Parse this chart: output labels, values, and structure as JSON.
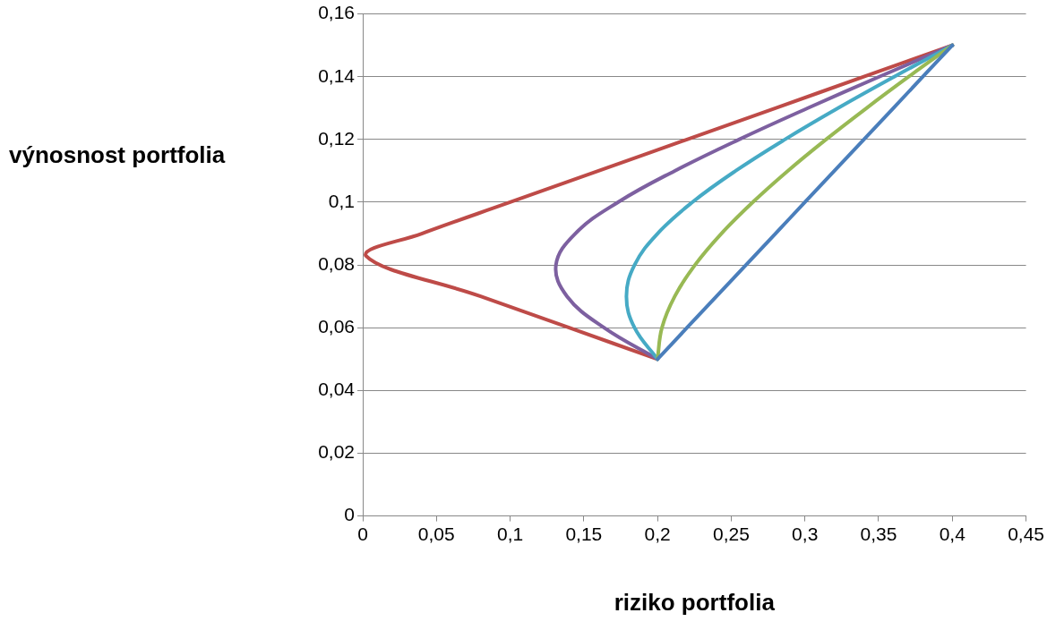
{
  "chart_data": {
    "type": "line",
    "xlabel": "riziko portfolia",
    "ylabel": "výnosnost portfolia",
    "xlim": [
      0,
      0.45
    ],
    "ylim": [
      0,
      0.16
    ],
    "xticks": [
      0,
      {
        "value": 0.05,
        "label": "0,05"
      },
      {
        "value": 0.1,
        "label": "0,1"
      },
      {
        "value": 0.15,
        "label": "0,15"
      },
      {
        "value": 0.2,
        "label": "0,2"
      },
      {
        "value": 0.25,
        "label": "0,25"
      },
      {
        "value": 0.3,
        "label": "0,3"
      },
      {
        "value": 0.35,
        "label": "0,35"
      },
      {
        "value": 0.4,
        "label": "0,4"
      },
      {
        "value": 0.45,
        "label": "0,45"
      }
    ],
    "yticks": [
      0,
      {
        "value": 0.02,
        "label": "0,02"
      },
      {
        "value": 0.04,
        "label": "0,04"
      },
      {
        "value": 0.06,
        "label": "0,06"
      },
      {
        "value": 0.08,
        "label": "0,08"
      },
      {
        "value": 0.1,
        "label": "0,1"
      },
      {
        "value": 0.12,
        "label": "0,12"
      },
      {
        "value": 0.14,
        "label": "0,14"
      },
      {
        "value": 0.16,
        "label": "0,16"
      }
    ],
    "grid": "y",
    "legend": false,
    "marker": "none",
    "line_style": "solid",
    "series": [
      {
        "color": "#4a7ebb",
        "x": [
          0.2,
          0.22,
          0.24,
          0.26,
          0.28,
          0.3,
          0.32,
          0.34,
          0.36,
          0.38,
          0.4
        ],
        "values": [
          0.05,
          0.06,
          0.07,
          0.08,
          0.09,
          0.1,
          0.11,
          0.12,
          0.13,
          0.14,
          0.15
        ]
      },
      {
        "color": "#98b954",
        "x": [
          0.2,
          0.203,
          0.2117,
          0.2254,
          0.2433,
          0.2646,
          0.2884,
          0.3143,
          0.3418,
          0.3704,
          0.4
        ],
        "values": [
          0.05,
          0.06,
          0.07,
          0.08,
          0.09,
          0.1,
          0.11,
          0.12,
          0.13,
          0.14,
          0.15
        ]
      },
      {
        "color": "#46aac5",
        "x": [
          0.2,
          0.1844,
          0.1789,
          0.1844,
          0.2,
          0.2236,
          0.253,
          0.2864,
          0.3225,
          0.3606,
          0.4
        ],
        "values": [
          0.05,
          0.06,
          0.07,
          0.08,
          0.09,
          0.1,
          0.11,
          0.12,
          0.13,
          0.14,
          0.15
        ]
      },
      {
        "color": "#7d60a0",
        "x": [
          0.2,
          0.1637,
          0.1386,
          0.1311,
          0.1442,
          0.1732,
          0.2117,
          0.2553,
          0.302,
          0.3504,
          0.4
        ],
        "values": [
          0.05,
          0.06,
          0.07,
          0.08,
          0.09,
          0.1,
          0.11,
          0.12,
          0.13,
          0.14,
          0.15
        ]
      },
      {
        "color": "#be4b48",
        "x": [
          0.2,
          0.14,
          0.08,
          0.002,
          0.04,
          0.1,
          0.16,
          0.22,
          0.28,
          0.34,
          0.4
        ],
        "values": [
          0.05,
          0.06,
          0.07,
          0.083,
          0.09,
          0.1,
          0.11,
          0.12,
          0.13,
          0.14,
          0.15
        ]
      }
    ]
  }
}
